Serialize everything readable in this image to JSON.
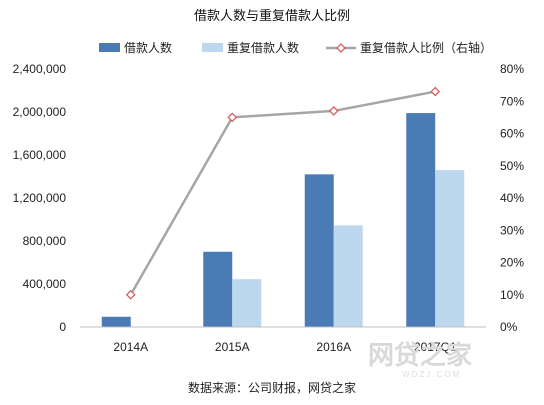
{
  "title": "借款人数与重复借款人比例",
  "source": "数据来源：公司财报，网贷之家",
  "watermark": "网贷之家",
  "watermark_sub": "WDZJ.COM",
  "colors": {
    "bar1": "#4b7bb5",
    "bar2": "#bdd7ee",
    "line": "#a6a6a6",
    "marker_edge": "#d9534f",
    "marker_fill": "#ffffff",
    "axis": "#bfbfbf"
  },
  "chart_data": {
    "type": "bar+line",
    "title": "借款人数与重复借款人比例",
    "categories": [
      "2014A",
      "2015A",
      "2016A",
      "2017Q1"
    ],
    "series": [
      {
        "name": "借款人数",
        "type": "bar",
        "axis": "left",
        "values": [
          95000,
          700000,
          1420000,
          1990000
        ]
      },
      {
        "name": "重复借款人数",
        "type": "bar",
        "axis": "left",
        "values": [
          0,
          445000,
          945000,
          1460000
        ]
      },
      {
        "name": "重复借款人比例（右轴）",
        "type": "line",
        "axis": "right",
        "values": [
          0.1,
          0.65,
          0.67,
          0.73
        ]
      }
    ],
    "left_axis": {
      "ylim": [
        0,
        2400000
      ],
      "ticks": [
        0,
        400000,
        800000,
        1200000,
        1600000,
        2000000,
        2400000
      ],
      "tick_labels": [
        "0",
        "400,000",
        "800,000",
        "1,200,000",
        "1,600,000",
        "2,000,000",
        "2,400,000"
      ]
    },
    "right_axis": {
      "ylim": [
        0,
        0.8
      ],
      "ticks": [
        0,
        0.1,
        0.2,
        0.3,
        0.4,
        0.5,
        0.6,
        0.7,
        0.8
      ],
      "tick_labels": [
        "0%",
        "10%",
        "20%",
        "30%",
        "40%",
        "50%",
        "60%",
        "70%",
        "80%"
      ]
    },
    "legend_position": "top",
    "grid": false
  }
}
